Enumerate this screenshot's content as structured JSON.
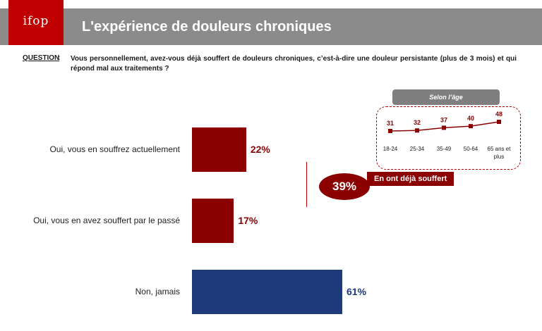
{
  "header": {
    "logo_text": "ifop",
    "title": "L'expérience de douleurs chroniques",
    "colors": {
      "bar_gray": "#8b8b8b",
      "logo_red": "#c00000"
    }
  },
  "question": {
    "label": "QUESTION",
    "colon": ":",
    "text": "Vous personnellement, avez-vous déjà souffert de douleurs chroniques, c’est-à-dire une douleur persistante (plus de 3 mois) et qui répond mal aux traitements ?"
  },
  "chart_data": [
    {
      "type": "bar",
      "orientation": "horizontal",
      "categories": [
        "Oui, vous en souffrez actuellement",
        "Oui, vous en avez souffert par le passé",
        "Non, jamais"
      ],
      "values": [
        22,
        17,
        61
      ],
      "value_labels": [
        "22%",
        "17%",
        "61%"
      ],
      "colors": [
        "#8b0000",
        "#8b0000",
        "#1f3a7a"
      ],
      "xlim": [
        0,
        100
      ],
      "grid": false
    },
    {
      "type": "line",
      "title": "Selon l’âge",
      "categories": [
        "18-24",
        "25-34",
        "35-49",
        "50-64",
        "65 ans et plus"
      ],
      "values": [
        31,
        32,
        37,
        40,
        48
      ],
      "ylim": [
        20,
        55
      ],
      "color": "#8b0000",
      "grid": false
    }
  ],
  "aggregate": {
    "value_label": "39%",
    "label": "En ont déjà souffert",
    "color": "#8b0000"
  }
}
